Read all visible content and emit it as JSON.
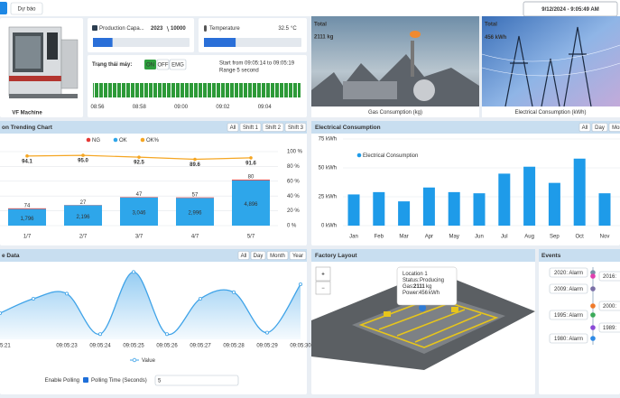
{
  "topbar": {
    "tab": "Dự báo",
    "datetime": "9/12/2024 - 9:05:49 AM"
  },
  "machine": {
    "label": "VF Machine"
  },
  "production": {
    "label": "Production Capa...",
    "value": 2023,
    "max": 10000
  },
  "temperature": {
    "label": "Temperature",
    "value": 32.5,
    "unit": "°C",
    "range": [
      0,
      100
    ]
  },
  "status": {
    "label": "Trạng thái máy:",
    "buttons": [
      "ON",
      "OFF",
      "EMG"
    ],
    "range_text": "Start from 09:05:14 to 09:05:19",
    "range_note": "Range 5 second",
    "xticks": [
      "08:56",
      "08:58",
      "09:00",
      "09:02",
      "09:04"
    ]
  },
  "gas": {
    "total_label": "Total",
    "total": "2111 kg",
    "caption": "Gas Consumption (kg)"
  },
  "electric": {
    "total_label": "Total",
    "total": "456 kWh",
    "caption": "Electrical Consumption (kWh)"
  },
  "production_chart": {
    "type": "bar",
    "title": "on Trending Chart",
    "buttons": [
      "All",
      "Shift 1",
      "Shift 2",
      "Shift 3"
    ],
    "categories": [
      "1/7",
      "2/7",
      "3/7",
      "4/7",
      "5/7"
    ],
    "series": [
      {
        "name": "NG",
        "color": "#e53935",
        "values": [
          74,
          27,
          47,
          57,
          80
        ]
      },
      {
        "name": "OK",
        "color": "#2ea6ea",
        "values": [
          1796,
          2196,
          3046,
          2996,
          4896
        ],
        "value_labels": [
          "1,796",
          "2,196",
          "3,046",
          "2,996",
          "4,896"
        ]
      },
      {
        "name": "OK%",
        "color": "#f5a623",
        "axis": "y2",
        "values": [
          94.1,
          95,
          92.5,
          89.6,
          91.6
        ],
        "value_labels": [
          "94.1",
          "95.0",
          "92.5",
          "89.6",
          "91.6"
        ]
      }
    ],
    "ylim": [
      0,
      8000
    ],
    "y2lim": [
      0,
      100
    ],
    "y2ticks": [
      {
        "value": 100,
        "label": "100 %"
      },
      {
        "value": 80,
        "label": "80 %"
      },
      {
        "value": 60,
        "label": "60 %"
      },
      {
        "value": 40,
        "label": "40 %"
      },
      {
        "value": 20,
        "label": "20 %"
      },
      {
        "value": 0,
        "label": "0 %"
      }
    ]
  },
  "electrical_chart": {
    "type": "bar",
    "title": "Electrical Consumption",
    "buttons": [
      "All",
      "Day",
      "Mon"
    ],
    "categories": [
      "Jan",
      "Feb",
      "Mar",
      "Apr",
      "May",
      "Jun",
      "Jul",
      "Aug",
      "Sep",
      "Oct",
      "Nov"
    ],
    "series": [
      {
        "name": "Electrical Consumption",
        "color": "#1e9be9",
        "values": [
          27,
          29,
          21,
          33,
          29,
          28,
          45,
          51,
          37,
          58,
          28
        ]
      }
    ],
    "ylim": [
      0,
      80
    ],
    "yticks": [
      {
        "value": 0,
        "label": "0 kWh"
      },
      {
        "value": 25,
        "label": "25 kWh"
      },
      {
        "value": 50,
        "label": "50 kWh"
      },
      {
        "value": 75,
        "label": "75 kWh"
      }
    ]
  },
  "realtime_chart": {
    "type": "line",
    "title": "e Data",
    "buttons": [
      "All",
      "Day",
      "Month",
      "Year"
    ],
    "categories": [
      "09:05:21",
      null,
      "09:05:23",
      "09:05:24",
      "09:05:25",
      "09:05:26",
      "09:05:27",
      "09:05:28",
      "09:05:29",
      "09:05:30"
    ],
    "series": [
      {
        "name": "Value",
        "color": "#3fa3e8",
        "values": [
          35,
          55,
          62,
          6,
          92,
          6,
          55,
          64,
          8,
          75
        ]
      }
    ],
    "ylim": [
      0,
      100
    ]
  },
  "polling": {
    "enable_label": "Enable Polling",
    "time_label": "Polling Time (Seconds)",
    "time": 5
  },
  "factory": {
    "title": "Factory Layout",
    "zoom_in": "+",
    "zoom_out": "−",
    "popup": {
      "location": "Location 1",
      "status_label": "Status:",
      "status": "Producing",
      "gas_label": "Gas:",
      "gas": 2111,
      "gas_unit": "kg",
      "power_label": "Power:",
      "power": 456,
      "power_unit": "kWh"
    }
  },
  "events": {
    "title": "Events",
    "left": [
      "2020: Alarm",
      "2009: Alarm",
      "1995: Alarm",
      "1980: Alarm"
    ],
    "right": [
      "2016:",
      "2000:",
      "1989:"
    ]
  }
}
